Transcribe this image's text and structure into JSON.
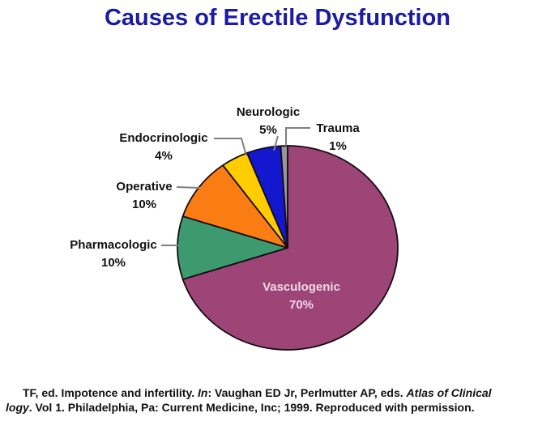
{
  "title": "Causes of Erectile Dysfunction",
  "title_color": "#1B1BA5",
  "chart_data": {
    "type": "pie",
    "title": "Causes of Erectile Dysfunction",
    "start_angle_deg": 0,
    "direction": "clockwise",
    "legend_position": "none",
    "slices": [
      {
        "label": "Vasculogenic",
        "value": 70,
        "pct_label": "70%",
        "color": "#9C4576"
      },
      {
        "label": "Pharmacologic",
        "value": 10,
        "pct_label": "10%",
        "color": "#3C9A6E"
      },
      {
        "label": "Operative",
        "value": 10,
        "pct_label": "10%",
        "color": "#F97D12"
      },
      {
        "label": "Endocrinologic",
        "value": 4,
        "pct_label": "4%",
        "color": "#FFCC00"
      },
      {
        "label": "Neurologic",
        "value": 5,
        "pct_label": "5%",
        "color": "#1318CE"
      },
      {
        "label": "Trauma",
        "value": 1,
        "pct_label": "1%",
        "color": "#97969B"
      }
    ],
    "slice_border_color": "#150B11",
    "leader_line_color": "#808080",
    "inside_label_color": "#F2D8E8"
  },
  "footer": {
    "lines": [
      {
        "segments": [
          {
            "text": "TF, ed. Impotence and infertility. ",
            "italic": false
          },
          {
            "text": "In",
            "italic": true
          },
          {
            "text": ": Vaughan ED Jr, Perlmutter AP, eds. ",
            "italic": false
          },
          {
            "text": "Atlas of Clinical",
            "italic": true
          }
        ]
      },
      {
        "segments": [
          {
            "text": "logy",
            "italic": true
          },
          {
            "text": ". Vol 1. Philadelphia, Pa: Current Medicine, Inc; 1999. Reproduced with permission.",
            "italic": false
          }
        ]
      }
    ]
  }
}
